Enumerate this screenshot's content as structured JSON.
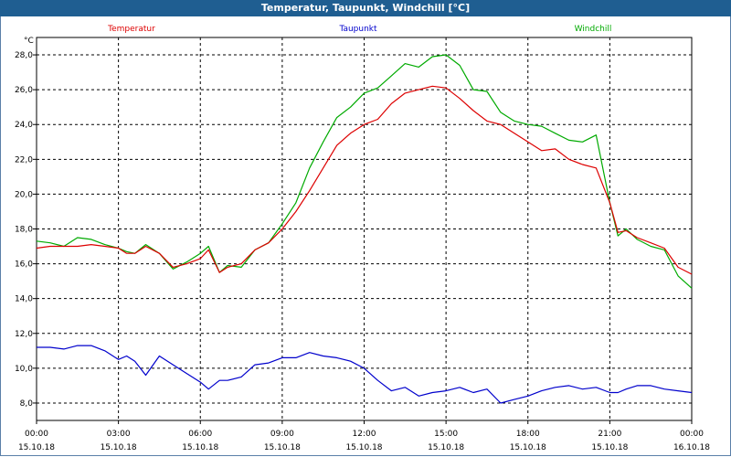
{
  "window": {
    "title": "Temperatur, Taupunkt, Windchill [°C]"
  },
  "chart_data": {
    "type": "line",
    "title": "Temperatur, Taupunkt, Windchill [°C]",
    "ylabel": "°C",
    "ylim": [
      7.0,
      29.0
    ],
    "yticks": [
      "8,0",
      "10,0",
      "12,0",
      "14,0",
      "16,0",
      "18,0",
      "20,0",
      "22,0",
      "24,0",
      "26,0",
      "28,0"
    ],
    "xlim": [
      "15.10.18 00:00",
      "16.10.18 00:00"
    ],
    "xticks": [
      {
        "time": "00:00",
        "date": "15.10.18"
      },
      {
        "time": "03:00",
        "date": "15.10.18"
      },
      {
        "time": "06:00",
        "date": "15.10.18"
      },
      {
        "time": "09:00",
        "date": "15.10.18"
      },
      {
        "time": "12:00",
        "date": "15.10.18"
      },
      {
        "time": "15:00",
        "date": "15.10.18"
      },
      {
        "time": "18:00",
        "date": "15.10.18"
      },
      {
        "time": "21:00",
        "date": "15.10.18"
      },
      {
        "time": "00:00",
        "date": "16.10.18"
      }
    ],
    "grid": true,
    "legend_position": "top",
    "x_hours": [
      0,
      0.5,
      1,
      1.5,
      2,
      2.5,
      3,
      3.3,
      3.6,
      4,
      4.5,
      5,
      5.5,
      6,
      6.3,
      6.7,
      7,
      7.5,
      8,
      8.5,
      9,
      9.5,
      10,
      10.5,
      11,
      11.5,
      12,
      12.5,
      13,
      13.5,
      14,
      14.5,
      15,
      15.5,
      16,
      16.5,
      17,
      17.5,
      18,
      18.5,
      19,
      19.5,
      20,
      20.5,
      21,
      21.3,
      21.6,
      22,
      22.5,
      23,
      23.5,
      24
    ],
    "series": [
      {
        "name": "Temperatur",
        "color": "#dd0000",
        "values": [
          16.9,
          17.0,
          17.0,
          17.0,
          17.1,
          17.0,
          16.9,
          16.6,
          16.6,
          17.0,
          16.6,
          15.8,
          16.0,
          16.3,
          16.8,
          15.5,
          15.8,
          16.0,
          16.8,
          17.2,
          18.0,
          19.0,
          20.2,
          21.5,
          22.8,
          23.5,
          24.0,
          24.3,
          25.2,
          25.8,
          26.0,
          26.2,
          26.1,
          25.5,
          24.8,
          24.2,
          24.0,
          23.5,
          23.0,
          22.5,
          22.6,
          22.0,
          21.7,
          21.5,
          19.5,
          17.8,
          17.9,
          17.5,
          17.2,
          16.9,
          15.8,
          15.4
        ]
      },
      {
        "name": "Taupunkt",
        "color": "#0000cc",
        "values": [
          11.2,
          11.2,
          11.1,
          11.3,
          11.3,
          11.0,
          10.5,
          10.7,
          10.4,
          9.6,
          10.7,
          10.2,
          9.7,
          9.2,
          8.8,
          9.3,
          9.3,
          9.5,
          10.2,
          10.3,
          10.6,
          10.6,
          10.9,
          10.7,
          10.6,
          10.4,
          10.0,
          9.3,
          8.7,
          8.9,
          8.4,
          8.6,
          8.7,
          8.9,
          8.6,
          8.8,
          8.0,
          8.2,
          8.4,
          8.7,
          8.9,
          9.0,
          8.8,
          8.9,
          8.6,
          8.6,
          8.8,
          9.0,
          9.0,
          8.8,
          8.7,
          8.6
        ]
      },
      {
        "name": "Windchill",
        "color": "#00aa00",
        "values": [
          17.3,
          17.2,
          17.0,
          17.5,
          17.4,
          17.1,
          16.9,
          16.7,
          16.6,
          17.1,
          16.6,
          15.7,
          16.1,
          16.6,
          17.0,
          15.5,
          15.9,
          15.8,
          16.8,
          17.2,
          18.3,
          19.5,
          21.5,
          23.0,
          24.4,
          25.0,
          25.8,
          26.1,
          26.8,
          27.5,
          27.3,
          27.9,
          28.0,
          27.4,
          26.0,
          25.9,
          24.7,
          24.2,
          24.0,
          23.9,
          23.5,
          23.1,
          23.0,
          23.4,
          19.5,
          17.6,
          18.0,
          17.4,
          17.0,
          16.8,
          15.3,
          14.6
        ]
      }
    ]
  }
}
